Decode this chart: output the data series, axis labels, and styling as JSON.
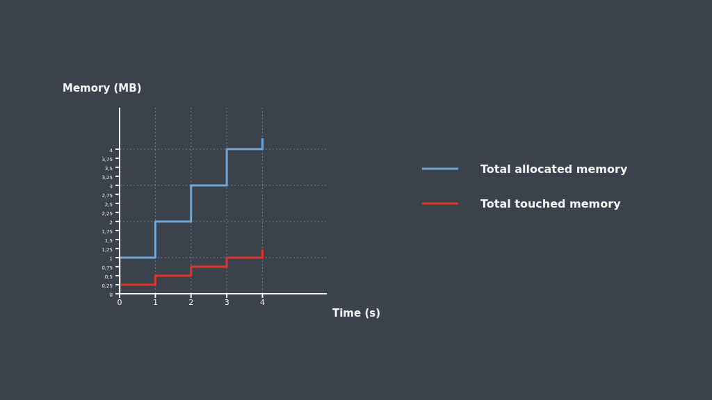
{
  "chart_data": {
    "type": "step",
    "xlabel": "Time (s)",
    "ylabel": "Memory (MB)",
    "series": [
      {
        "name": "Total allocated memory",
        "color": "#6fa8dc",
        "x": [
          0,
          0,
          1,
          2,
          3,
          4
        ],
        "values": [
          0,
          1,
          2,
          3,
          4,
          4.3
        ]
      },
      {
        "name": "Total touched memory",
        "color": "#e0352b",
        "x": [
          0,
          0,
          1,
          2,
          3,
          4
        ],
        "values": [
          0,
          0.25,
          0.5,
          0.75,
          1,
          1.22
        ]
      }
    ],
    "xlim": [
      0,
      5.8
    ],
    "ylim": [
      0,
      5.15
    ],
    "xticks": [
      0,
      1,
      2,
      3,
      4
    ],
    "yticks": [
      0,
      {
        "value": 0.25,
        "label": "0,25"
      },
      {
        "value": 0.5,
        "label": "0,5"
      },
      {
        "value": 0.75,
        "label": "0,75"
      },
      1,
      {
        "value": 1.25,
        "label": "1,25"
      },
      {
        "value": 1.5,
        "label": "1,5"
      },
      {
        "value": 1.75,
        "label": "1,75"
      },
      2,
      {
        "value": 2.25,
        "label": "2,25"
      },
      {
        "value": 2.5,
        "label": "2,5"
      },
      {
        "value": 2.75,
        "label": "2,75"
      },
      3,
      {
        "value": 3.25,
        "label": "3,25"
      },
      {
        "value": 3.5,
        "label": "3,5"
      },
      {
        "value": 3.75,
        "label": "3,75"
      },
      4
    ],
    "grid": true,
    "legend": "right",
    "marker": "none",
    "line_style": "solid"
  }
}
